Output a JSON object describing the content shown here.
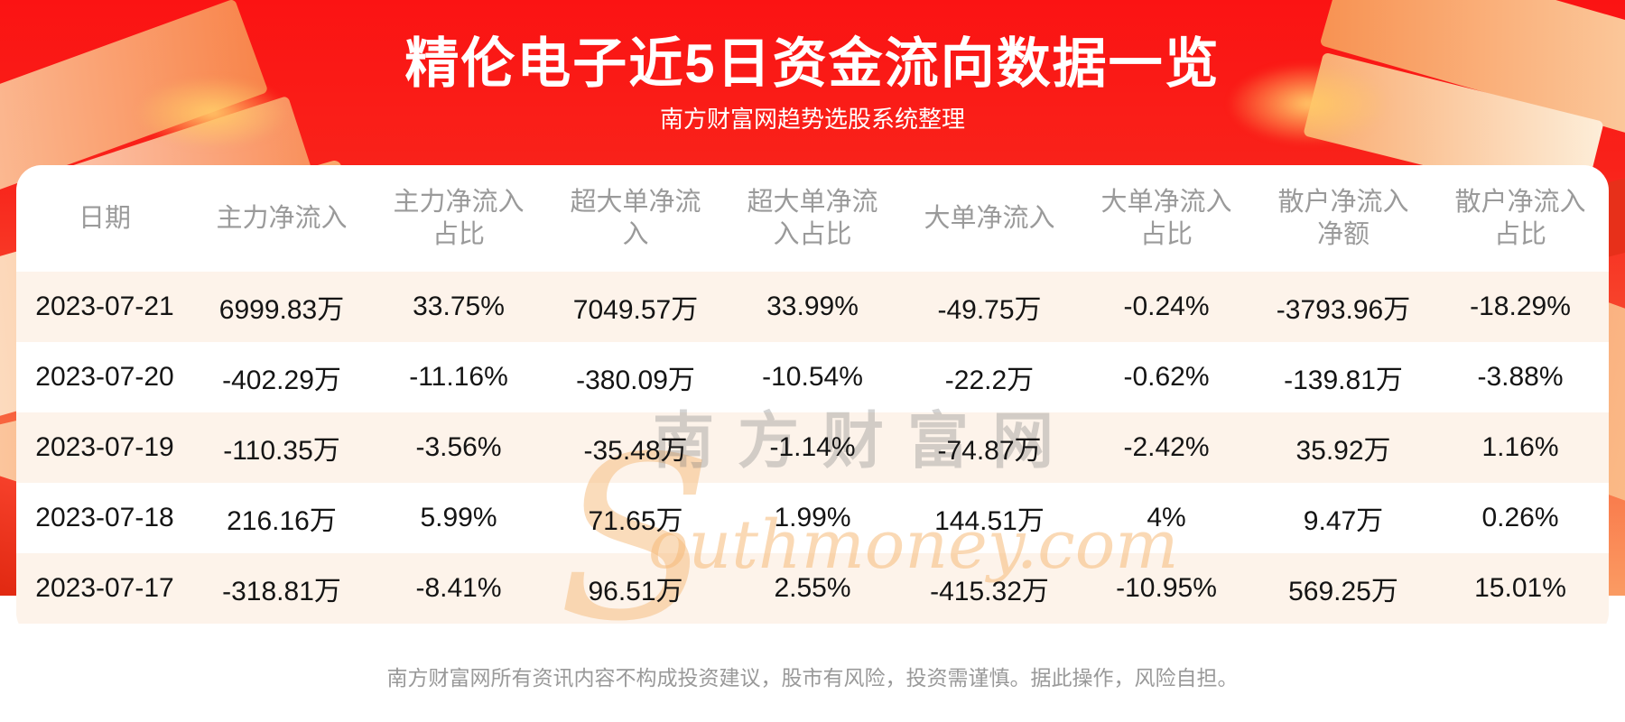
{
  "page": {
    "title": "精伦电子近5日资金流向数据一览",
    "subtitle": "南方财富网趋势选股系统整理",
    "footer_disclaimer": "南方财富网所有资讯内容不构成投资建议，股市有风险，投资需谨慎。据此操作，风险自担。",
    "watermark": {
      "s_glyph": "S",
      "cn_text": "南方财富网",
      "en_text": "outhmoney.com"
    }
  },
  "colors": {
    "banner_red_top": "#fb1313",
    "banner_orange_bottom": "#fa9b63",
    "row_stripe": "#fdf3ea",
    "header_text_gray": "#9a9a9a",
    "cell_text": "#141414",
    "footer_gray": "#999999",
    "watermark_orange": "#f6ba78",
    "decor_peach": "#fbd0a2"
  },
  "table": {
    "headers": [
      {
        "line1": "日期",
        "line2": ""
      },
      {
        "line1": "主力净流入",
        "line2": ""
      },
      {
        "line1": "主力净流入",
        "line2": "占比"
      },
      {
        "line1": "超大单净流",
        "line2": "入"
      },
      {
        "line1": "超大单净流",
        "line2": "入占比"
      },
      {
        "line1": "大单净流入",
        "line2": ""
      },
      {
        "line1": "大单净流入",
        "line2": "占比"
      },
      {
        "line1": "散户净流入",
        "line2": "净额"
      },
      {
        "line1": "散户净流入",
        "line2": "占比"
      }
    ],
    "rows": [
      [
        "2023-07-21",
        "6999.83万",
        "33.75%",
        "7049.57万",
        "33.99%",
        "-49.75万",
        "-0.24%",
        "-3793.96万",
        "-18.29%"
      ],
      [
        "2023-07-20",
        "-402.29万",
        "-11.16%",
        "-380.09万",
        "-10.54%",
        "-22.2万",
        "-0.62%",
        "-139.81万",
        "-3.88%"
      ],
      [
        "2023-07-19",
        "-110.35万",
        "-3.56%",
        "-35.48万",
        "-1.14%",
        "-74.87万",
        "-2.42%",
        "35.92万",
        "1.16%"
      ],
      [
        "2023-07-18",
        "216.16万",
        "5.99%",
        "71.65万",
        "1.99%",
        "144.51万",
        "4%",
        "9.47万",
        "0.26%"
      ],
      [
        "2023-07-17",
        "-318.81万",
        "-8.41%",
        "96.51万",
        "2.55%",
        "-415.32万",
        "-10.95%",
        "569.25万",
        "15.01%"
      ]
    ]
  },
  "chart_data": {
    "type": "table",
    "title": "精伦电子近5日资金流向数据一览",
    "subtitle": "南方财富网趋势选股系统整理",
    "columns": [
      "日期",
      "主力净流入",
      "主力净流入占比",
      "超大单净流入",
      "超大单净流入占比",
      "大单净流入",
      "大单净流入占比",
      "散户净流入净额",
      "散户净流入占比"
    ],
    "rows": [
      [
        "2023-07-21",
        "6999.83万",
        "33.75%",
        "7049.57万",
        "33.99%",
        "-49.75万",
        "-0.24%",
        "-3793.96万",
        "-18.29%"
      ],
      [
        "2023-07-20",
        "-402.29万",
        "-11.16%",
        "-380.09万",
        "-10.54%",
        "-22.2万",
        "-0.62%",
        "-139.81万",
        "-3.88%"
      ],
      [
        "2023-07-19",
        "-110.35万",
        "-3.56%",
        "-35.48万",
        "-1.14%",
        "-74.87万",
        "-2.42%",
        "35.92万",
        "1.16%"
      ],
      [
        "2023-07-18",
        "216.16万",
        "5.99%",
        "71.65万",
        "1.99%",
        "144.51万",
        "4%",
        "9.47万",
        "0.26%"
      ],
      [
        "2023-07-17",
        "-318.81万",
        "-8.41%",
        "96.51万",
        "2.55%",
        "-415.32万",
        "-10.95%",
        "569.25万",
        "15.01%"
      ]
    ],
    "numeric": {
      "dates": [
        "2023-07-21",
        "2023-07-20",
        "2023-07-19",
        "2023-07-18",
        "2023-07-17"
      ],
      "main_net_inflow_wan": [
        6999.83,
        -402.29,
        -110.35,
        216.16,
        -318.81
      ],
      "main_net_inflow_pct": [
        33.75,
        -11.16,
        -3.56,
        5.99,
        -8.41
      ],
      "xl_order_net_inflow_wan": [
        7049.57,
        -380.09,
        -35.48,
        71.65,
        96.51
      ],
      "xl_order_net_inflow_pct": [
        33.99,
        -10.54,
        -1.14,
        1.99,
        2.55
      ],
      "large_order_net_inflow_wan": [
        -49.75,
        -22.2,
        -74.87,
        144.51,
        -415.32
      ],
      "large_order_net_inflow_pct": [
        -0.24,
        -0.62,
        -2.42,
        4,
        -10.95
      ],
      "retail_net_inflow_wan": [
        -3793.96,
        -139.81,
        35.92,
        9.47,
        569.25
      ],
      "retail_net_inflow_pct": [
        -18.29,
        -3.88,
        1.16,
        0.26,
        15.01
      ]
    }
  }
}
